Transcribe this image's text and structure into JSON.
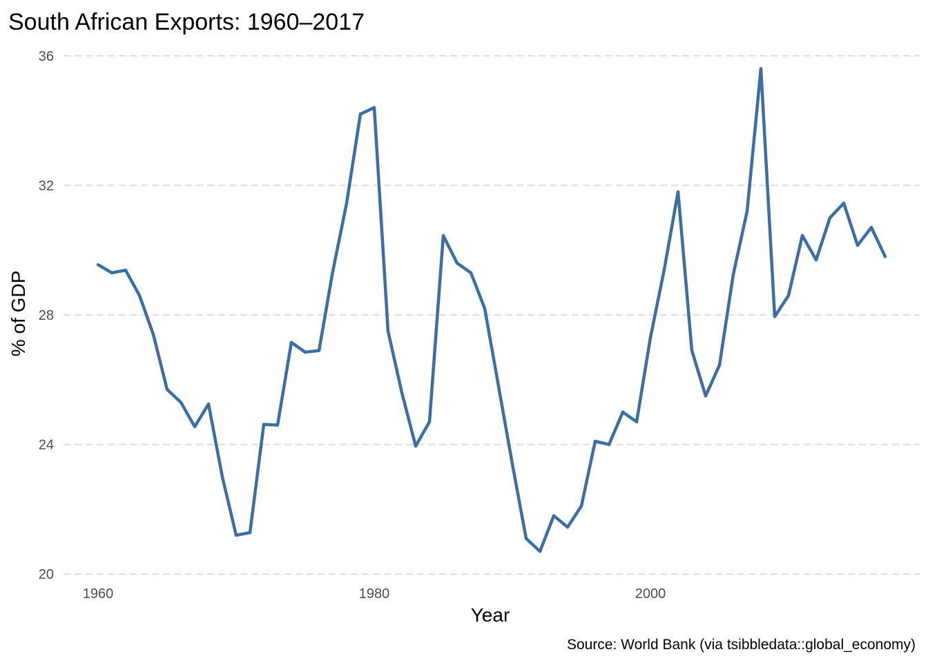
{
  "chart_data": {
    "type": "line",
    "title": "South African Exports: 1960–2017",
    "xlabel": "Year",
    "ylabel": "% of GDP",
    "caption": "Source: World Bank (via tsibbledata::global_economy)",
    "xlim": [
      1957.5,
      2019.5
    ],
    "ylim": [
      19.6,
      36.4
    ],
    "x_ticks": [
      1960,
      1980,
      2000
    ],
    "y_ticks": [
      20,
      24,
      28,
      32,
      36
    ],
    "grid": "horizontal-dashed",
    "legend": "none",
    "line_color": "#3A6EA5",
    "series": [
      {
        "x": [
          1960,
          1961,
          1962,
          1963,
          1964,
          1965,
          1966,
          1967,
          1968,
          1969,
          1970,
          1971,
          1972,
          1973,
          1974,
          1975,
          1976,
          1977,
          1978,
          1979,
          1980,
          1981,
          1982,
          1983,
          1984,
          1985,
          1986,
          1987,
          1988,
          1989,
          1990,
          1991,
          1992,
          1993,
          1994,
          1995,
          1996,
          1997,
          1998,
          1999,
          2000,
          2001,
          2002,
          2003,
          2004,
          2005,
          2006,
          2007,
          2008,
          2009,
          2010,
          2011,
          2012,
          2013,
          2014,
          2015,
          2016,
          2017
        ],
        "values": [
          29.55,
          29.3,
          29.38,
          28.6,
          27.4,
          25.7,
          25.3,
          24.55,
          25.25,
          23.0,
          21.2,
          21.28,
          24.62,
          24.6,
          27.15,
          26.85,
          26.9,
          29.35,
          31.45,
          34.2,
          34.4,
          27.5,
          25.6,
          23.95,
          24.7,
          30.45,
          29.6,
          29.3,
          28.2,
          25.8,
          23.4,
          21.1,
          20.7,
          21.8,
          21.45,
          22.1,
          24.1,
          24.0,
          25.0,
          24.7,
          27.3,
          29.4,
          31.8,
          26.9,
          25.5,
          26.45,
          29.25,
          31.2,
          35.6,
          27.95,
          28.6,
          30.45,
          29.7,
          31.0,
          31.45,
          30.15,
          30.7,
          29.8
        ]
      }
    ]
  }
}
